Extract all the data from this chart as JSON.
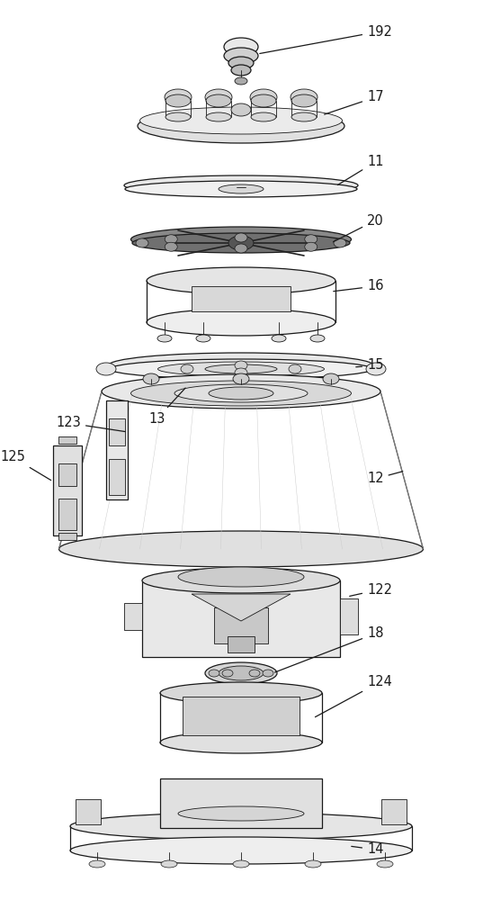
{
  "bg_color": "#ffffff",
  "line_color": "#1a1a1a",
  "label_color": "#1a1a1a",
  "figsize": [
    5.37,
    10.0
  ],
  "dpi": 100,
  "xlim": [
    0,
    537
  ],
  "ylim": [
    0,
    1000
  ]
}
